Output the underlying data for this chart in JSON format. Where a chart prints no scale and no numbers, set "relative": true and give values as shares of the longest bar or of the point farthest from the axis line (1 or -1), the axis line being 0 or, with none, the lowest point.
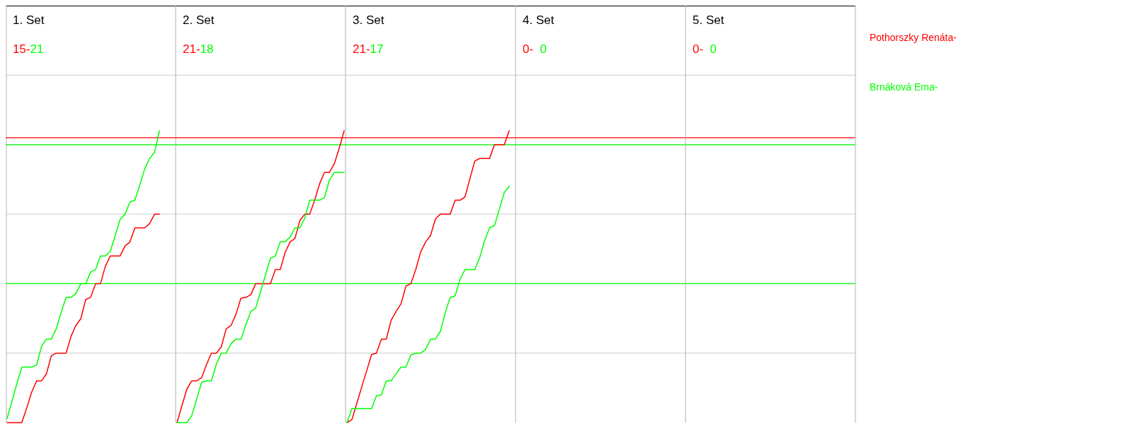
{
  "chart_data": [
    {
      "type": "line",
      "title": "1. Set",
      "annotations": [
        "15-",
        "21"
      ],
      "relative": true,
      "grid": "y",
      "categories": [
        null,
        null,
        null,
        null,
        null,
        null,
        null,
        null,
        null,
        null,
        null,
        null,
        null,
        null,
        null,
        null,
        null,
        null,
        null,
        null,
        null,
        null,
        null,
        null,
        null,
        null,
        null,
        null,
        null,
        null,
        null,
        null,
        null,
        null,
        null
      ],
      "ref_lines": [
        {
          "axis": "y",
          "value": 0.976,
          "color": "#ff0000"
        },
        {
          "axis": "y",
          "value": 0.952,
          "color": "#00ff00"
        },
        {
          "axis": "y",
          "value": 0.476,
          "color": "#00ff00"
        }
      ],
      "series": [
        {
          "color": "#ff0000",
          "values": [
            0,
            0,
            0,
            0,
            0.05,
            0.104,
            0.143,
            0.143,
            0.167,
            0.229,
            0.238,
            0.238,
            0.238,
            0.295,
            0.333,
            0.356,
            0.422,
            0.429,
            0.476,
            0.476,
            0.536,
            0.571,
            0.571,
            0.571,
            0.605,
            0.619,
            0.667,
            0.667,
            0.667,
            0.682,
            0.714,
            0.714,
            null,
            null,
            null
          ]
        },
        {
          "color": "#00ff00",
          "values": [
            0.014,
            0.074,
            0.133,
            0.19,
            0.19,
            0.19,
            0.197,
            0.261,
            0.286,
            0.286,
            0.321,
            0.377,
            0.429,
            0.429,
            0.442,
            0.476,
            0.476,
            0.516,
            0.524,
            0.571,
            0.571,
            0.587,
            0.641,
            0.696,
            0.714,
            0.756,
            0.762,
            0.814,
            0.869,
            0.905,
            0.926,
            1,
            null,
            null,
            null
          ]
        }
      ]
    },
    {
      "type": "line",
      "title": "2. Set",
      "annotations": [
        "21-",
        "18"
      ],
      "relative": true,
      "grid": "y",
      "categories": [
        null,
        null,
        null,
        null,
        null,
        null,
        null,
        null,
        null,
        null,
        null,
        null,
        null,
        null,
        null,
        null,
        null,
        null,
        null,
        null,
        null,
        null,
        null,
        null,
        null,
        null,
        null,
        null,
        null,
        null,
        null,
        null,
        null,
        null,
        null
      ],
      "ref_lines": [
        {
          "axis": "y",
          "value": 0.976,
          "color": "#ff0000"
        },
        {
          "axis": "y",
          "value": 0.952,
          "color": "#00ff00"
        },
        {
          "axis": "y",
          "value": 0.476,
          "color": "#00ff00"
        }
      ],
      "series": [
        {
          "color": "#ff0000",
          "values": [
            0,
            0.058,
            0.115,
            0.143,
            0.143,
            0.154,
            0.199,
            0.238,
            0.238,
            0.259,
            0.321,
            0.333,
            0.372,
            0.426,
            0.429,
            0.438,
            0.476,
            0.476,
            0.476,
            0.476,
            0.524,
            0.524,
            0.583,
            0.619,
            0.631,
            0.693,
            0.714,
            0.714,
            0.762,
            0.818,
            0.857,
            0.857,
            0.887,
            0.94,
            1
          ]
        },
        {
          "color": "#00ff00",
          "values": [
            0,
            0,
            0,
            0.024,
            0.081,
            0.138,
            0.143,
            0.143,
            0.2,
            0.238,
            0.238,
            0.271,
            0.286,
            0.286,
            0.335,
            0.381,
            0.392,
            0.449,
            0.506,
            0.563,
            0.571,
            0.619,
            0.619,
            0.636,
            0.667,
            0.667,
            0.701,
            0.762,
            0.762,
            0.762,
            0.771,
            0.831,
            0.857,
            0.857,
            0.857
          ]
        }
      ]
    },
    {
      "type": "line",
      "title": "3. Set",
      "annotations": [
        "21-",
        "17"
      ],
      "relative": true,
      "grid": "y",
      "categories": [
        null,
        null,
        null,
        null,
        null,
        null,
        null,
        null,
        null,
        null,
        null,
        null,
        null,
        null,
        null,
        null,
        null,
        null,
        null,
        null,
        null,
        null,
        null,
        null,
        null,
        null,
        null,
        null,
        null,
        null,
        null,
        null,
        null,
        null,
        null
      ],
      "ref_lines": [
        {
          "axis": "y",
          "value": 0.976,
          "color": "#ff0000"
        },
        {
          "axis": "y",
          "value": 0.952,
          "color": "#00ff00"
        },
        {
          "axis": "y",
          "value": 0.476,
          "color": "#00ff00"
        }
      ],
      "series": [
        {
          "name": "Pothorszky Renáta-",
          "color": "#ff0000",
          "values": [
            0,
            0.01,
            0.066,
            0.122,
            0.177,
            0.233,
            0.238,
            0.286,
            0.286,
            0.351,
            0.381,
            0.407,
            0.468,
            0.476,
            0.525,
            0.585,
            0.619,
            0.641,
            0.698,
            0.714,
            0.714,
            0.714,
            0.762,
            0.762,
            0.773,
            0.835,
            0.896,
            0.905,
            0.905,
            0.905,
            0.952,
            0.952,
            0.952,
            1,
            null
          ]
        },
        {
          "name": "Brnáková Ema-",
          "color": "#00ff00",
          "values": [
            0,
            0.048,
            0.048,
            0.048,
            0.048,
            0.048,
            0.092,
            0.095,
            0.143,
            0.143,
            0.168,
            0.19,
            0.19,
            0.232,
            0.238,
            0.238,
            0.251,
            0.286,
            0.286,
            0.313,
            0.377,
            0.429,
            0.434,
            0.491,
            0.524,
            0.524,
            0.524,
            0.565,
            0.623,
            0.667,
            0.675,
            0.731,
            0.788,
            0.81,
            null
          ]
        }
      ]
    },
    {
      "type": "other",
      "title": "4. Set",
      "annotations": [
        "0-",
        "0"
      ],
      "series": [
        {
          "color": "#ff0000"
        },
        {
          "color": "#00ff00"
        }
      ]
    },
    {
      "type": "other",
      "title": "5. Set",
      "annotations": [
        "0-",
        "0"
      ],
      "series": [
        {
          "color": "#ff0000"
        },
        {
          "color": "#00ff00"
        }
      ]
    }
  ]
}
